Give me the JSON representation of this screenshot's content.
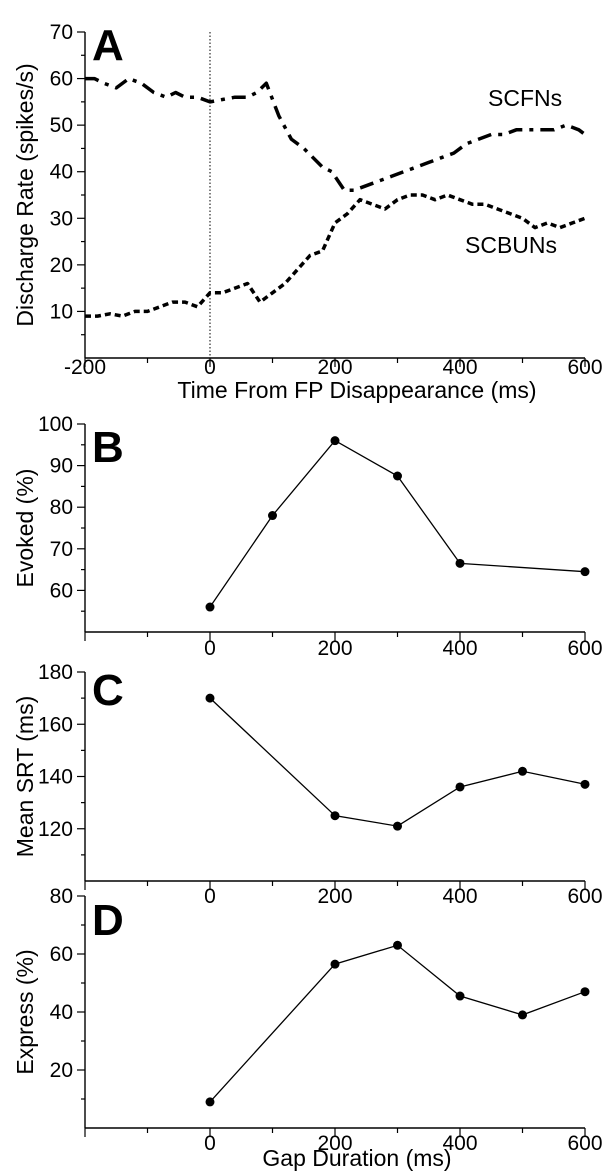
{
  "chart_data": [
    {
      "panel": "A",
      "type": "line",
      "xlabel": "Time From FP Disappearance (ms)",
      "ylabel": "Discharge Rate (spikes/s)",
      "xlim": [
        -200,
        600
      ],
      "ylim": [
        0,
        70
      ],
      "xticks": [
        -200,
        0,
        200,
        400,
        600
      ],
      "yticks": [
        10,
        20,
        30,
        40,
        50,
        60,
        70
      ],
      "reference_line_x": 0,
      "series": [
        {
          "name": "SCFNs",
          "line_style": "long-dash",
          "x": [
            -200,
            -185,
            -170,
            -150,
            -130,
            -110,
            -90,
            -70,
            -55,
            -40,
            -20,
            0,
            20,
            40,
            60,
            75,
            90,
            110,
            130,
            150,
            165,
            180,
            195,
            205,
            215,
            230,
            250,
            270,
            290,
            310,
            330,
            350,
            370,
            390,
            410,
            430,
            450,
            470,
            490,
            510,
            530,
            550,
            570,
            590,
            600
          ],
          "values": [
            60,
            60,
            59,
            58,
            60,
            59,
            57,
            56,
            57,
            56,
            56,
            55,
            55.5,
            56,
            56,
            57,
            59,
            52,
            47,
            45,
            43,
            41,
            40,
            38,
            36,
            36,
            37,
            38,
            39,
            40,
            41,
            42,
            43,
            44,
            46,
            47,
            48,
            48,
            49,
            49,
            49,
            49,
            50,
            49,
            48
          ]
        },
        {
          "name": "SCBUNs",
          "line_style": "short-dash",
          "x": [
            -200,
            -180,
            -160,
            -140,
            -120,
            -100,
            -80,
            -60,
            -40,
            -20,
            0,
            20,
            40,
            60,
            80,
            100,
            120,
            140,
            160,
            180,
            200,
            220,
            240,
            260,
            280,
            300,
            320,
            340,
            360,
            380,
            400,
            420,
            440,
            460,
            480,
            500,
            520,
            540,
            560,
            580,
            600
          ],
          "values": [
            9,
            9,
            9.5,
            9,
            10,
            10,
            11,
            12,
            12,
            11,
            14,
            14,
            15,
            16,
            12,
            14,
            16,
            19,
            22,
            23,
            29,
            31,
            34,
            33,
            32,
            34,
            35,
            35,
            34,
            35,
            34,
            33,
            33,
            32,
            31,
            30,
            28,
            29,
            28,
            29,
            30
          ]
        }
      ]
    },
    {
      "panel": "B",
      "type": "line",
      "xlabel": "",
      "ylabel": "Evoked (%)",
      "xlim": [
        -200,
        600
      ],
      "ylim": [
        50,
        100
      ],
      "xticks": [
        0,
        200,
        400,
        600
      ],
      "yticks": [
        60,
        70,
        80,
        90,
        100
      ],
      "series": [
        {
          "x": [
            0,
            100,
            200,
            300,
            400,
            600
          ],
          "values": [
            56,
            78,
            96,
            87.5,
            66.5,
            64.5
          ]
        }
      ]
    },
    {
      "panel": "C",
      "type": "line",
      "xlabel": "",
      "ylabel": "Mean SRT (ms)",
      "xlim": [
        -200,
        600
      ],
      "ylim": [
        100,
        180
      ],
      "xticks": [
        0,
        200,
        400,
        600
      ],
      "yticks": [
        120,
        140,
        160,
        180
      ],
      "series": [
        {
          "x": [
            0,
            200,
            300,
            400,
            500,
            600
          ],
          "values": [
            170,
            125,
            121,
            136,
            142,
            137
          ]
        }
      ]
    },
    {
      "panel": "D",
      "type": "line",
      "xlabel": "Gap Duration (ms)",
      "ylabel": "Express (%)",
      "xlim": [
        -200,
        600
      ],
      "ylim": [
        0,
        80
      ],
      "xticks": [
        0,
        200,
        400,
        600
      ],
      "yticks": [
        20,
        40,
        60,
        80
      ],
      "series": [
        {
          "x": [
            0,
            200,
            300,
            400,
            500,
            600
          ],
          "values": [
            9,
            56.5,
            63,
            45.5,
            39,
            47
          ]
        }
      ]
    }
  ]
}
